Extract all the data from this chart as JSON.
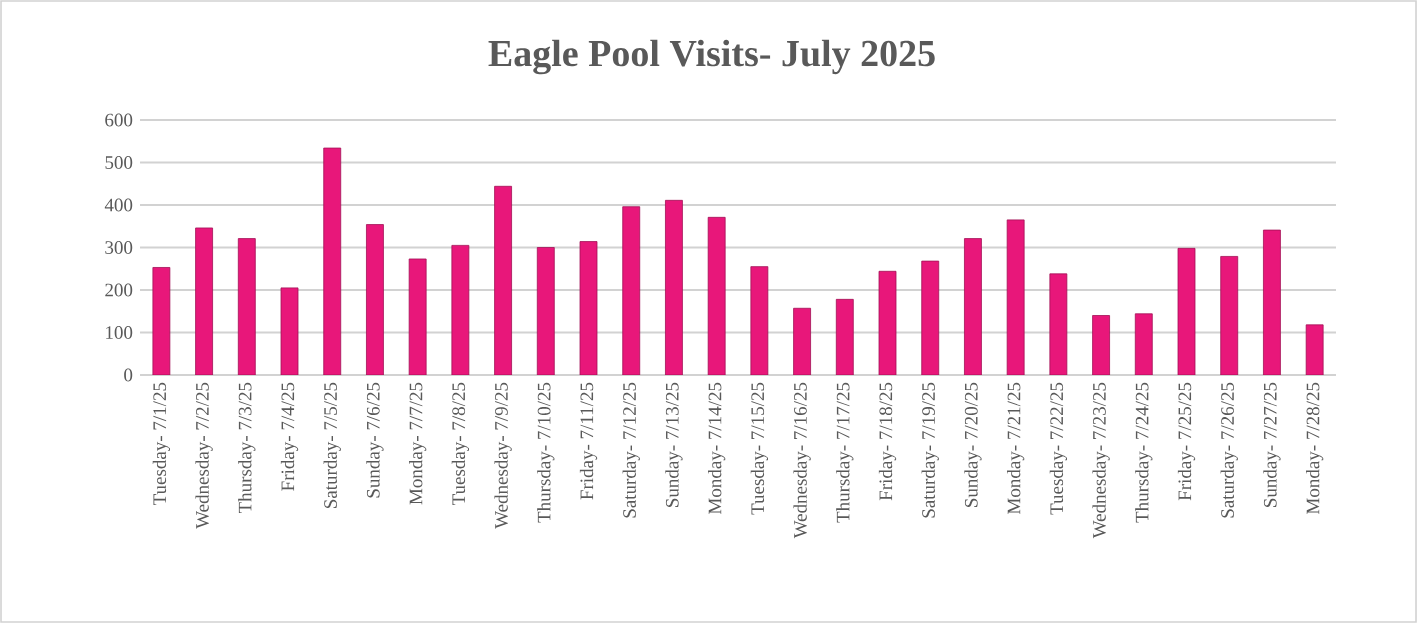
{
  "chart_data": {
    "type": "bar",
    "title": "Eagle Pool Visits- July 2025",
    "categories": [
      "Tuesday- 7/1/25",
      "Wednesday- 7/2/25",
      "Thursday- 7/3/25",
      "Friday- 7/4/25",
      "Saturday- 7/5/25",
      "Sunday- 7/6/25",
      "Monday- 7/7/25",
      "Tuesday- 7/8/25",
      "Wednesday- 7/9/25",
      "Thursday- 7/10/25",
      "Friday- 7/11/25",
      "Saturday- 7/12/25",
      "Sunday- 7/13/25",
      "Monday- 7/14/25",
      "Tuesday- 7/15/25",
      "Wednesday- 7/16/25",
      "Thursday- 7/17/25",
      "Friday- 7/18/25",
      "Saturday- 7/19/25",
      "Sunday- 7/20/25",
      "Monday- 7/21/25",
      "Tuesday- 7/22/25",
      "Wednesday- 7/23/25",
      "Thursday- 7/24/25",
      "Friday- 7/25/25",
      "Saturday- 7/26/25",
      "Sunday- 7/27/25",
      "Monday- 7/28/25"
    ],
    "values": [
      253,
      346,
      321,
      205,
      534,
      354,
      273,
      305,
      444,
      300,
      314,
      396,
      411,
      371,
      255,
      157,
      178,
      244,
      268,
      321,
      365,
      238,
      140,
      144,
      298,
      279,
      341,
      118
    ],
    "color": "#e8177a",
    "ylim": [
      0,
      600
    ],
    "yticks": [
      0,
      100,
      200,
      300,
      400,
      500,
      600
    ],
    "grid": "y"
  }
}
